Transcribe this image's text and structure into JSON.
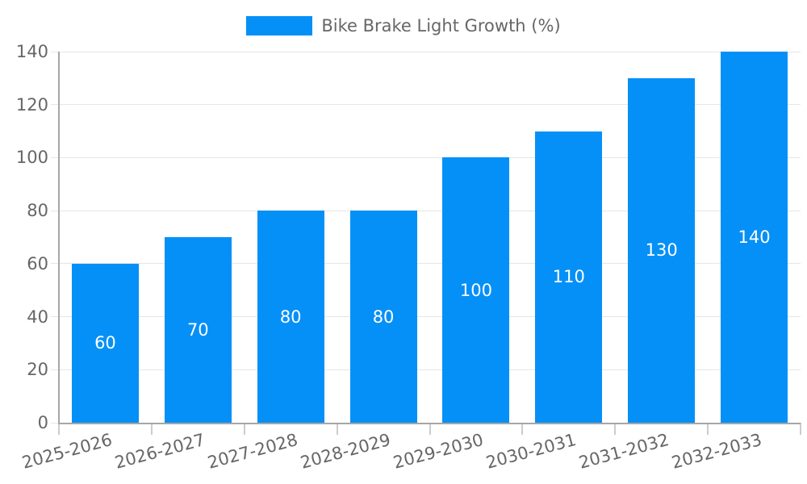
{
  "legend": {
    "label": "Bike Brake Light Growth (%)"
  },
  "chart_data": {
    "type": "bar",
    "title": "",
    "series_name": "Bike Brake Light Growth (%)",
    "categories": [
      "2025-2026",
      "2026-2027",
      "2027-2028",
      "2028-2029",
      "2029-2030",
      "2030-2031",
      "2031-2032",
      "2032-2033"
    ],
    "values": [
      60,
      70,
      80,
      80,
      100,
      110,
      130,
      140
    ],
    "value_labels": [
      "60",
      "70",
      "80",
      "80",
      "100",
      "110",
      "130",
      "140"
    ],
    "xlabel": "",
    "ylabel": "",
    "ylim": [
      0,
      140
    ],
    "yticks": [
      0,
      20,
      40,
      60,
      80,
      100,
      120,
      140
    ],
    "grid": true,
    "legend_position": "top",
    "x_tick_rotation_deg": -15,
    "colors": {
      "bar": "#0590f7",
      "bar_value_text": "#ffffff",
      "axis_text": "#666666",
      "gridline": "#e6e6e6",
      "axis_line": "#a6a6a6",
      "tick": "#cccccc",
      "background": "#ffffff"
    }
  }
}
